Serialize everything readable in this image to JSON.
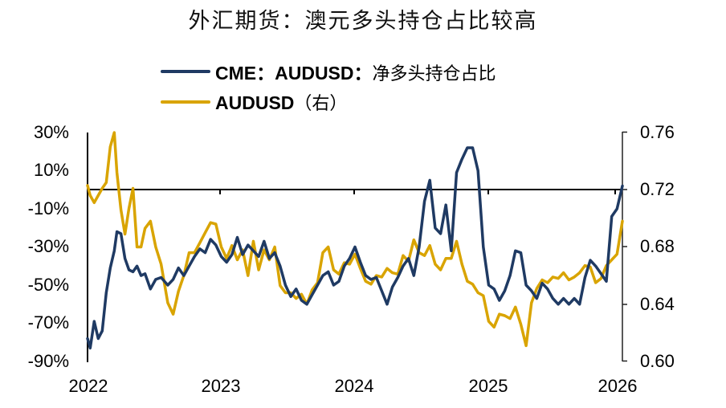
{
  "title": "外汇期货：澳元多头持仓占比较高",
  "legend": [
    {
      "label_en": "CME：AUDUSD：",
      "label_cn": "净多头持仓占比",
      "color": "#1F3A63"
    },
    {
      "label_en": "AUDUSD",
      "label_cn": "（右）",
      "color": "#D9A400"
    }
  ],
  "axes": {
    "left_ticks": [
      "30%",
      "10%",
      "-10%",
      "-30%",
      "-50%",
      "-70%",
      "-90%"
    ],
    "right_ticks": [
      "0.76",
      "0.72",
      "0.68",
      "0.64",
      "0.60"
    ],
    "x_ticks": [
      "2022",
      "2023",
      "2024",
      "2025",
      "2026"
    ]
  },
  "chart_data": {
    "type": "line",
    "title": "外汇期货：澳元多头持仓占比较高",
    "xlabel": "",
    "ylabel": "",
    "x_range": [
      "2022",
      "2026"
    ],
    "x_ticks": [
      "2022",
      "2023",
      "2024",
      "2025",
      "2026"
    ],
    "left_axis": {
      "range": [
        -0.9,
        0.3
      ],
      "ticks": [
        "30%",
        "10%",
        "-10%",
        "-30%",
        "-50%",
        "-70%",
        "-90%"
      ],
      "format": "percent"
    },
    "right_axis": {
      "range": [
        0.6,
        0.76
      ],
      "ticks": [
        "0.76",
        "0.72",
        "0.68",
        "0.64",
        "0.60"
      ]
    },
    "reference_line": {
      "axis": "left",
      "value": 0.0
    },
    "grid": false,
    "legend_position": "top",
    "series": [
      {
        "name": "CME：AUDUSD：净多头持仓占比",
        "axis": "left",
        "color": "#1F3A63",
        "x": [
          2022.0,
          2022.02,
          2022.05,
          2022.08,
          2022.11,
          2022.14,
          2022.17,
          2022.2,
          2022.22,
          2022.25,
          2022.28,
          2022.31,
          2022.34,
          2022.37,
          2022.4,
          2022.43,
          2022.47,
          2022.51,
          2022.55,
          2022.6,
          2022.64,
          2022.68,
          2022.72,
          2022.76,
          2022.8,
          2022.84,
          2022.88,
          2022.92,
          2022.96,
          2023.0,
          2023.04,
          2023.08,
          2023.12,
          2023.16,
          2023.2,
          2023.24,
          2023.28,
          2023.32,
          2023.36,
          2023.4,
          2023.44,
          2023.48,
          2023.52,
          2023.56,
          2023.6,
          2023.64,
          2023.68,
          2023.72,
          2023.76,
          2023.8,
          2023.84,
          2023.88,
          2023.92,
          2023.96,
          2024.0,
          2024.04,
          2024.08,
          2024.12,
          2024.16,
          2024.2,
          2024.24,
          2024.28,
          2024.32,
          2024.36,
          2024.4,
          2024.44,
          2024.48,
          2024.52,
          2024.56,
          2024.6,
          2024.64,
          2024.68,
          2024.72,
          2024.76,
          2024.8,
          2024.84,
          2024.88,
          2024.92,
          2024.96,
          2025.0,
          2025.04,
          2025.08,
          2025.12,
          2025.16,
          2025.2,
          2025.24,
          2025.28,
          2025.32,
          2025.36,
          2025.4,
          2025.44,
          2025.48,
          2025.52,
          2025.56,
          2025.6,
          2025.64,
          2025.68,
          2025.72,
          2025.76,
          2025.8,
          2025.84,
          2025.88,
          2025.92,
          2025.96,
          2026.0
        ],
        "values": [
          -0.78,
          -0.83,
          -0.69,
          -0.78,
          -0.74,
          -0.54,
          -0.41,
          -0.32,
          -0.22,
          -0.23,
          -0.36,
          -0.42,
          -0.43,
          -0.4,
          -0.45,
          -0.44,
          -0.52,
          -0.47,
          -0.46,
          -0.5,
          -0.47,
          -0.41,
          -0.45,
          -0.4,
          -0.35,
          -0.31,
          -0.33,
          -0.26,
          -0.29,
          -0.35,
          -0.38,
          -0.34,
          -0.25,
          -0.34,
          -0.29,
          -0.32,
          -0.35,
          -0.27,
          -0.36,
          -0.33,
          -0.4,
          -0.5,
          -0.56,
          -0.52,
          -0.58,
          -0.6,
          -0.55,
          -0.5,
          -0.45,
          -0.43,
          -0.5,
          -0.48,
          -0.4,
          -0.36,
          -0.3,
          -0.38,
          -0.45,
          -0.47,
          -0.46,
          -0.53,
          -0.6,
          -0.51,
          -0.46,
          -0.4,
          -0.36,
          -0.45,
          -0.3,
          -0.06,
          0.05,
          -0.2,
          -0.23,
          -0.08,
          -0.32,
          0.09,
          0.16,
          0.22,
          0.22,
          0.1,
          -0.3,
          -0.5,
          -0.52,
          -0.58,
          -0.53,
          -0.45,
          -0.32,
          -0.33,
          -0.5,
          -0.53,
          -0.57,
          -0.49,
          -0.52,
          -0.57,
          -0.6,
          -0.57,
          -0.6,
          -0.57,
          -0.6,
          -0.46,
          -0.37,
          -0.4,
          -0.44,
          -0.48,
          -0.14,
          -0.1,
          0.02
        ]
      },
      {
        "name": "AUDUSD（右）",
        "axis": "right",
        "color": "#D9A400",
        "x": [
          2022.0,
          2022.02,
          2022.05,
          2022.08,
          2022.11,
          2022.14,
          2022.17,
          2022.2,
          2022.22,
          2022.25,
          2022.28,
          2022.31,
          2022.34,
          2022.37,
          2022.4,
          2022.43,
          2022.47,
          2022.51,
          2022.55,
          2022.6,
          2022.64,
          2022.68,
          2022.72,
          2022.76,
          2022.8,
          2022.84,
          2022.88,
          2022.92,
          2022.96,
          2023.0,
          2023.04,
          2023.08,
          2023.12,
          2023.16,
          2023.2,
          2023.24,
          2023.28,
          2023.32,
          2023.36,
          2023.4,
          2023.44,
          2023.48,
          2023.52,
          2023.56,
          2023.6,
          2023.64,
          2023.68,
          2023.72,
          2023.76,
          2023.8,
          2023.84,
          2023.88,
          2023.92,
          2023.96,
          2024.0,
          2024.04,
          2024.08,
          2024.12,
          2024.16,
          2024.2,
          2024.24,
          2024.28,
          2024.32,
          2024.36,
          2024.4,
          2024.44,
          2024.48,
          2024.52,
          2024.56,
          2024.6,
          2024.64,
          2024.68,
          2024.72,
          2024.76,
          2024.8,
          2024.84,
          2024.88,
          2024.92,
          2024.96,
          2025.0,
          2025.04,
          2025.08,
          2025.12,
          2025.16,
          2025.2,
          2025.24,
          2025.28,
          2025.32,
          2025.36,
          2025.4,
          2025.44,
          2025.48,
          2025.52,
          2025.56,
          2025.6,
          2025.64,
          2025.68,
          2025.72,
          2025.76,
          2025.8,
          2025.84,
          2025.88,
          2025.92,
          2025.96,
          2026.0
        ],
        "values": [
          0.723,
          0.716,
          0.711,
          0.716,
          0.721,
          0.725,
          0.75,
          0.76,
          0.732,
          0.706,
          0.689,
          0.707,
          0.721,
          0.68,
          0.68,
          0.693,
          0.698,
          0.68,
          0.668,
          0.641,
          0.633,
          0.649,
          0.66,
          0.676,
          0.676,
          0.683,
          0.69,
          0.697,
          0.696,
          0.68,
          0.672,
          0.681,
          0.671,
          0.678,
          0.66,
          0.684,
          0.664,
          0.678,
          0.671,
          0.68,
          0.653,
          0.648,
          0.648,
          0.644,
          0.647,
          0.64,
          0.65,
          0.655,
          0.676,
          0.68,
          0.664,
          0.661,
          0.669,
          0.668,
          0.675,
          0.665,
          0.656,
          0.654,
          0.66,
          0.659,
          0.665,
          0.662,
          0.661,
          0.674,
          0.67,
          0.685,
          0.676,
          0.674,
          0.681,
          0.668,
          0.664,
          0.672,
          0.672,
          0.684,
          0.668,
          0.656,
          0.654,
          0.648,
          0.646,
          0.628,
          0.624,
          0.633,
          0.632,
          0.63,
          0.638,
          0.626,
          0.611,
          0.641,
          0.651,
          0.657,
          0.655,
          0.659,
          0.658,
          0.662,
          0.657,
          0.659,
          0.662,
          0.667,
          0.666,
          0.655,
          0.658,
          0.667,
          0.671,
          0.675,
          0.698
        ]
      }
    ]
  }
}
